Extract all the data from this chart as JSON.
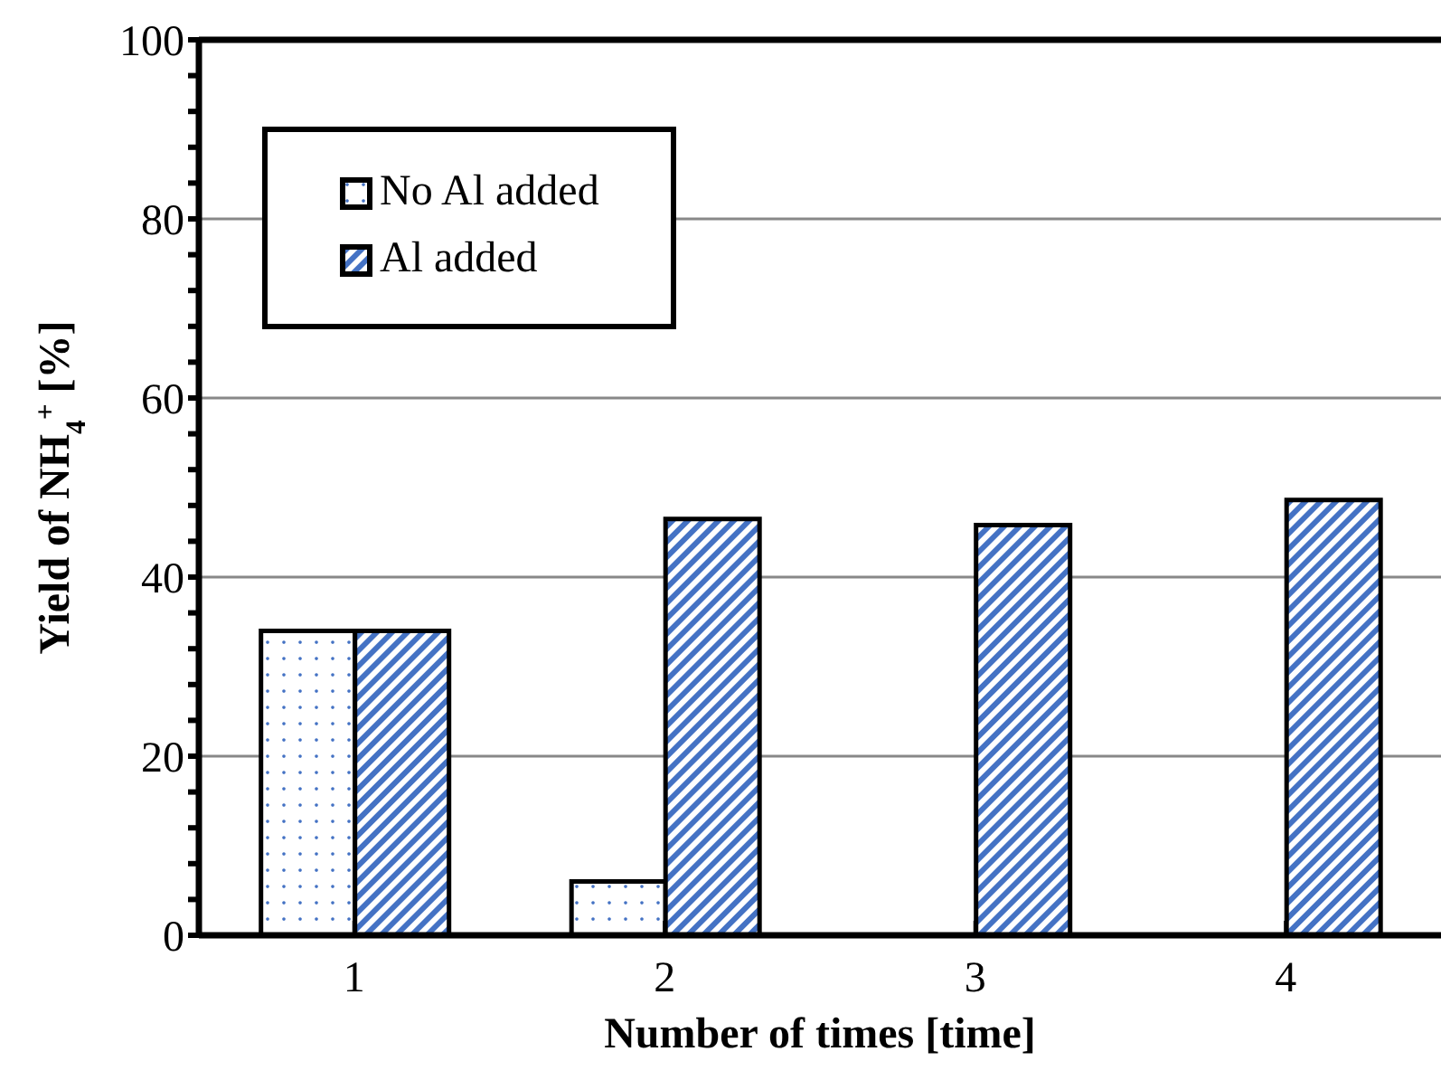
{
  "chart_data": {
    "type": "bar",
    "xlabel": "Number of times [time]",
    "ylabel": "Yield of NH$_{4}$$^{+}$ [%]",
    "categories": [
      "1",
      "2",
      "3",
      "4"
    ],
    "series": [
      {
        "name": "No Al added",
        "color": "#4472c4",
        "values": [
          34,
          6,
          null,
          null
        ]
      },
      {
        "name": "Al added",
        "color": "#4472c4",
        "values": [
          34,
          46.5,
          45.8,
          48.6
        ]
      }
    ],
    "ylim": [
      0,
      100
    ],
    "yticks": [
      0,
      {
        "value": 4,
        "label": null
      },
      {
        "value": 8,
        "label": null
      },
      {
        "value": 12,
        "label": null
      },
      {
        "value": 16,
        "label": null
      },
      20,
      {
        "value": 24,
        "label": null
      },
      {
        "value": 28,
        "label": null
      },
      {
        "value": 32,
        "label": null
      },
      {
        "value": 36,
        "label": null
      },
      40,
      {
        "value": 44,
        "label": null
      },
      {
        "value": 48,
        "label": null
      },
      {
        "value": 52,
        "label": null
      },
      {
        "value": 56,
        "label": null
      },
      60,
      {
        "value": 64,
        "label": null
      },
      {
        "value": 68,
        "label": null
      },
      {
        "value": 72,
        "label": null
      },
      {
        "value": 76,
        "label": null
      },
      80,
      {
        "value": 84,
        "label": null
      },
      {
        "value": 88,
        "label": null
      },
      {
        "value": 92,
        "label": null
      },
      {
        "value": 96,
        "label": null
      },
      100
    ],
    "grid": "y",
    "legend": "top left"
  }
}
